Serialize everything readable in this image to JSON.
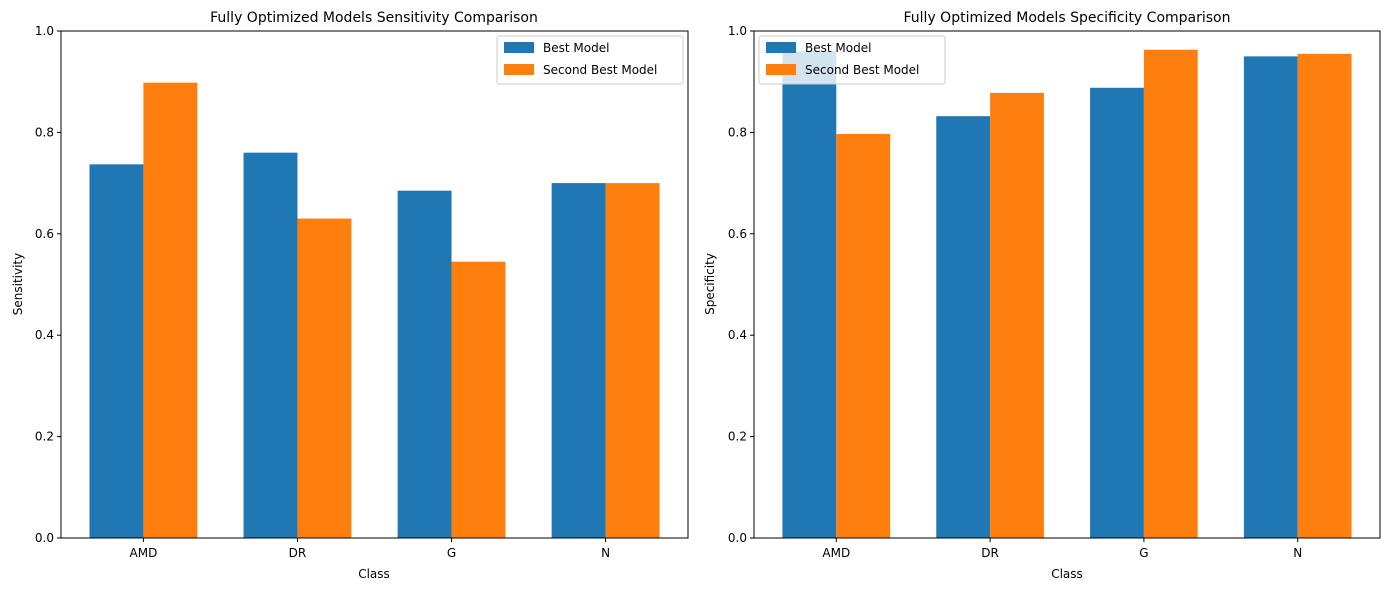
{
  "colors": {
    "best": "#1f77b4",
    "second": "#ff7f0e"
  },
  "chart_data": [
    {
      "type": "bar",
      "title": "Fully Optimized Models Sensitivity Comparison",
      "xlabel": "Class",
      "ylabel": "Sensitivity",
      "categories": [
        "AMD",
        "DR",
        "G",
        "N"
      ],
      "ylim": [
        0,
        1
      ],
      "yticks": [
        "0.0",
        "0.2",
        "0.4",
        "0.6",
        "0.8",
        "1.0"
      ],
      "legend_position": "upper right",
      "series": [
        {
          "name": "Best Model",
          "values": [
            0.737,
            0.76,
            0.685,
            0.7
          ]
        },
        {
          "name": "Second Best Model",
          "values": [
            0.898,
            0.63,
            0.545,
            0.7
          ]
        }
      ]
    },
    {
      "type": "bar",
      "title": "Fully Optimized Models Specificity Comparison",
      "xlabel": "Class",
      "ylabel": "Specificity",
      "categories": [
        "AMD",
        "DR",
        "G",
        "N"
      ],
      "ylim": [
        0,
        1
      ],
      "yticks": [
        "0.0",
        "0.2",
        "0.4",
        "0.6",
        "0.8",
        "1.0"
      ],
      "legend_position": "upper left",
      "series": [
        {
          "name": "Best Model",
          "values": [
            0.96,
            0.832,
            0.888,
            0.95
          ]
        },
        {
          "name": "Second Best Model",
          "values": [
            0.797,
            0.878,
            0.963,
            0.955
          ]
        }
      ]
    }
  ]
}
